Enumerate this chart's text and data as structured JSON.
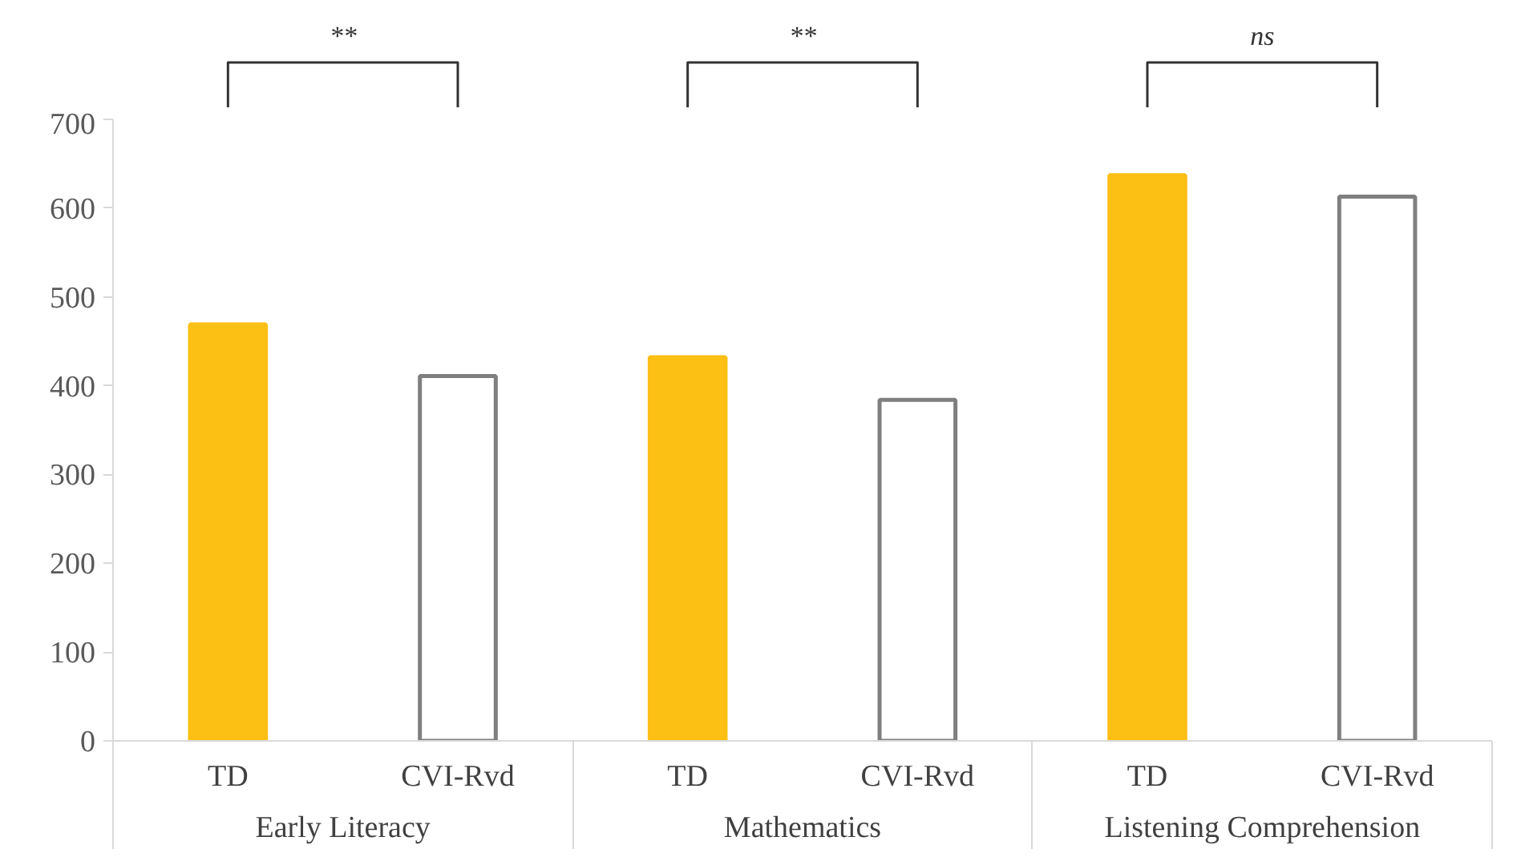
{
  "chart_data": {
    "type": "bar",
    "categories": [
      "TD",
      "CVI-Rvd",
      "TD",
      "CVI-Rvd",
      "TD",
      "CVI-Rvd"
    ],
    "values": [
      469,
      411,
      432,
      384,
      637,
      613
    ],
    "colors": [
      "#fcbf14",
      "#ffffff",
      "#fcbf14",
      "#ffffff",
      "#fcbf14",
      "#ffffff"
    ],
    "annotations": [
      "**",
      "**",
      "ns",
      "Early Literacy",
      "Mathematics",
      "Listening Comprehension"
    ],
    "ylim": [
      0,
      700
    ],
    "yticks": [
      0,
      100,
      200,
      300,
      400,
      500,
      600,
      700
    ],
    "grid": false
  }
}
